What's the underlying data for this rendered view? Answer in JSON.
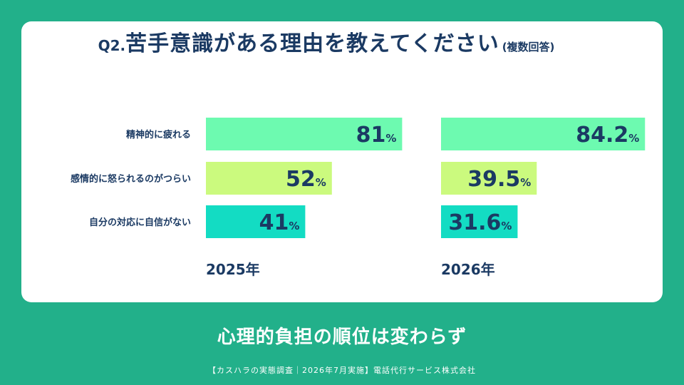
{
  "title": {
    "prefix": "Q2.",
    "main": "苦手意識がある理由を教えてください",
    "note": "(複数回答)"
  },
  "caption": "心理的負担の順位は変わらず",
  "footer": "【カスハラの実態調査｜2026年7月実施】電話代行サービス株式会社",
  "value_unit": "%",
  "colors": {
    "background": "#22b08a",
    "title": "#1b3a63",
    "bar_1": "#6dfab0",
    "bar_2": "#cbfa7e",
    "bar_3": "#13dcc3"
  },
  "chart_data": [
    {
      "type": "bar",
      "orientation": "horizontal",
      "xlabel": "2025年",
      "categories": [
        "精神的に疲れる",
        "感情的に怒られるのがつらい",
        "自分の対応に自信がない"
      ],
      "values": [
        81,
        52,
        41
      ],
      "labels": [
        "81",
        "52",
        "41"
      ],
      "xlim": [
        0,
        100
      ]
    },
    {
      "type": "bar",
      "orientation": "horizontal",
      "xlabel": "2026年",
      "categories": [
        "精神的に疲れる",
        "感情的に怒られるのがつらい",
        "自分の対応に自信がない"
      ],
      "values": [
        84.2,
        39.5,
        31.6
      ],
      "labels": [
        "84.2",
        "39.5",
        "31.6"
      ],
      "xlim": [
        0,
        100
      ]
    }
  ]
}
